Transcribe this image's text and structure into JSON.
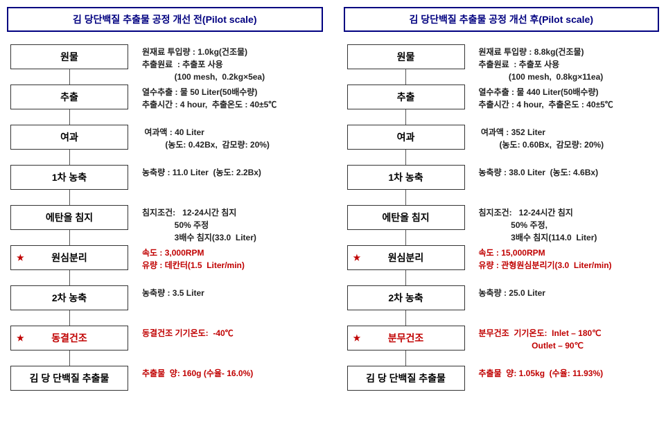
{
  "left": {
    "title": "김 당단백질 추출물 공정 개선 전(Pilot scale)",
    "steps": [
      {
        "label": "원물",
        "desc": [
          "원재료 투입량 : 1.0kg(건조물)",
          "추출원료  : 추출포 사용",
          "              (100 mesh,  0.2kg×5ea)"
        ]
      },
      {
        "label": "추출",
        "desc": [
          "열수추출 : 물 50 Liter(50배수량)",
          "추출시간 : 4 hour,  추출온도 : 40±5℃"
        ]
      },
      {
        "label": "여과",
        "desc": [
          " 여과액 : 40 Liter",
          "          (농도: 0.42Bx,  감모량: 20%)"
        ]
      },
      {
        "label": "1차 농축",
        "desc": [
          "농축량 : 11.0 Liter  (농도: 2.2Bx)"
        ]
      },
      {
        "label": "에탄올 침지",
        "desc": [
          "침지조건:   12-24시간 침지",
          "              50% 주정",
          "              3배수 침지(33.0  Liter)"
        ]
      },
      {
        "label": "원심분리",
        "star": true,
        "red_desc": [
          "속도 : 3,000RPM",
          "유량 : 데칸터(1.5  Liter/min)"
        ]
      },
      {
        "label": "2차 농축",
        "desc": [
          "농축량 : 3.5 Liter"
        ]
      },
      {
        "label": "동결건조",
        "star": true,
        "red_label": true,
        "red_desc": [
          "동결건조 기기온도:  -40℃"
        ]
      },
      {
        "label": "김 당 단백질 추출물",
        "red_desc": [
          "추출물  양: 160g (수율- 16.0%)"
        ]
      }
    ]
  },
  "right": {
    "title": "김 당단백질 추출물 공정 개선 후(Pilot scale)",
    "steps": [
      {
        "label": "원물",
        "desc": [
          "원재료 투입량 : 8.8kg(건조물)",
          "추출원료  : 추출포 사용",
          "             (100 mesh,  0.8kg×11ea)"
        ]
      },
      {
        "label": "추출",
        "desc": [
          "열수추출 : 물 440 Liter(50배수량)",
          "추출시간 : 4 hour,  추출온도 : 40±5℃"
        ]
      },
      {
        "label": "여과",
        "desc": [
          " 여과액 : 352 Liter",
          "         (농도: 0.60Bx,  감모량: 20%)"
        ]
      },
      {
        "label": "1차 농축",
        "desc": [
          "농축량 : 38.0 Liter  (농도: 4.6Bx)"
        ]
      },
      {
        "label": "에탄올 침지",
        "desc": [
          "침지조건:   12-24시간 침지",
          "              50% 주정,",
          "              3배수 침지(114.0  Liter)"
        ]
      },
      {
        "label": "원심분리",
        "star": true,
        "red_desc": [
          "속도 : 15,000RPM",
          "유량 : 관형원심분리기(3.0  Liter/min)"
        ]
      },
      {
        "label": "2차 농축",
        "desc": [
          "농축량 : 25.0 Liter"
        ]
      },
      {
        "label": "분무건조",
        "star": true,
        "red_label": true,
        "red_desc": [
          "분무건조  기기온도:  Inlet – 180℃",
          "                       Outlet – 90℃"
        ]
      },
      {
        "label": "김 당 단백질 추출물",
        "red_desc": [
          "추출물  양: 1.05kg  (수율: 11.93%)"
        ]
      }
    ]
  }
}
